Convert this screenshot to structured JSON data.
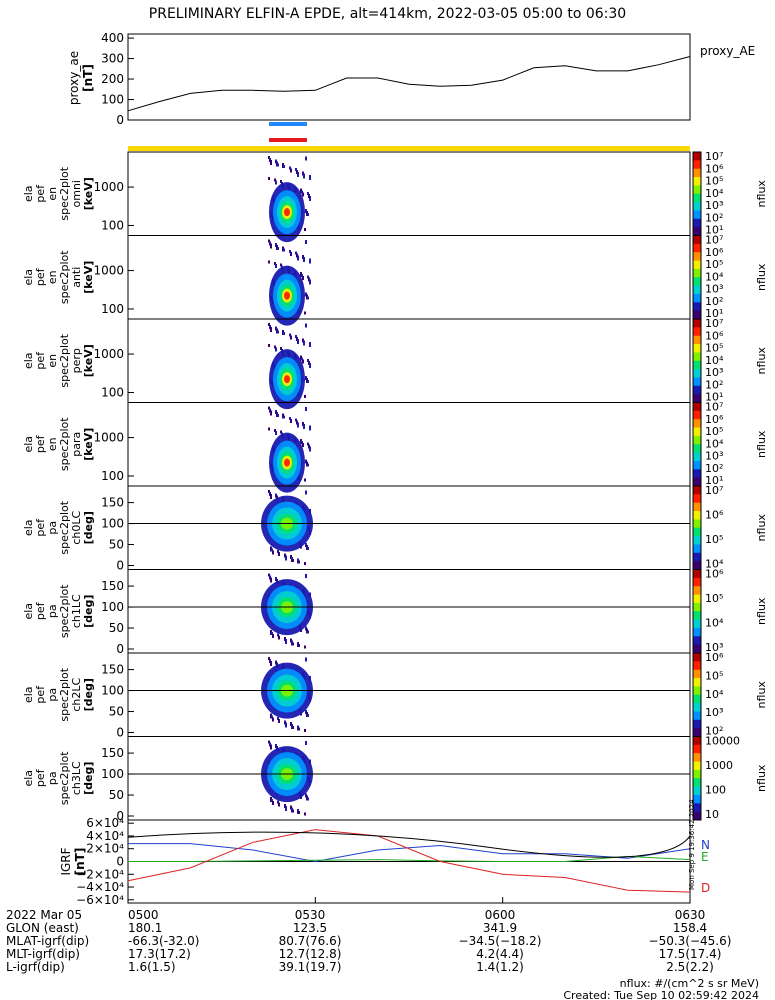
{
  "title": "PRELIMINARY ELFIN-A EPDE, alt=414km, 2022-03-05 05:00 to 06:30",
  "colors": {
    "ae_line": "#000000",
    "bar_blue": "#1e88ff",
    "bar_red": "#e41a1c",
    "bar_yellow": "#ffd700",
    "grf_total": "#000000",
    "grf_n": "#1f3fcc",
    "grf_e": "#22aa22",
    "grf_d": "#dd2222"
  },
  "ae_panel": {
    "ylabel": "proxy_ae",
    "yunit": "[nT]",
    "legend": "proxy_AE",
    "yticks": [
      "400",
      "300",
      "200",
      "100",
      "0"
    ]
  },
  "spec_panels": [
    {
      "label": [
        "ela",
        "pef",
        "en",
        "spec2plot",
        "omni",
        "[keV]"
      ],
      "yticks": [
        "1000",
        "100"
      ],
      "cbar": [
        "10⁷",
        "10⁶",
        "10⁵",
        "10⁴",
        "10³",
        "10²",
        "10¹"
      ],
      "cbar_label": "nflux"
    },
    {
      "label": [
        "ela",
        "pef",
        "en",
        "spec2plot",
        "anti",
        "[keV]"
      ],
      "yticks": [
        "1000",
        "100"
      ],
      "cbar": [
        "10⁷",
        "10⁶",
        "10⁵",
        "10⁴",
        "10³",
        "10²",
        "10¹"
      ],
      "cbar_label": "nflux"
    },
    {
      "label": [
        "ela",
        "pef",
        "en",
        "spec2plot",
        "perp",
        "[keV]"
      ],
      "yticks": [
        "1000",
        "100"
      ],
      "cbar": [
        "10⁷",
        "10⁶",
        "10⁵",
        "10⁴",
        "10³",
        "10²",
        "10¹"
      ],
      "cbar_label": "nflux"
    },
    {
      "label": [
        "ela",
        "pef",
        "en",
        "spec2plot",
        "para",
        "[keV]"
      ],
      "yticks": [
        "1000",
        "100"
      ],
      "cbar": [
        "10⁷",
        "10⁶",
        "10⁵",
        "10⁴",
        "10³",
        "10²",
        "10¹"
      ],
      "cbar_label": "nflux"
    },
    {
      "label": [
        "ela",
        "pef",
        "pa",
        "spec2plot",
        "ch0LC",
        "[deg]"
      ],
      "yticks": [
        "150",
        "100",
        "50",
        "0"
      ],
      "cbar": [
        "10⁷",
        "10⁶",
        "10⁵",
        "10⁴"
      ],
      "cbar_label": "nflux"
    },
    {
      "label": [
        "ela",
        "pef",
        "pa",
        "spec2plot",
        "ch1LC",
        "[deg]"
      ],
      "yticks": [
        "150",
        "100",
        "50",
        "0"
      ],
      "cbar": [
        "10⁶",
        "10⁵",
        "10⁴",
        "10³"
      ],
      "cbar_label": "nflux"
    },
    {
      "label": [
        "ela",
        "pef",
        "pa",
        "spec2plot",
        "ch2LC",
        "[deg]"
      ],
      "yticks": [
        "150",
        "100",
        "50",
        "0"
      ],
      "cbar": [
        "10⁶",
        "10⁵",
        "10⁴",
        "10³",
        "10²"
      ],
      "cbar_label": "nflux"
    },
    {
      "label": [
        "ela",
        "pef",
        "pa",
        "spec2plot",
        "ch3LC",
        "[deg]"
      ],
      "yticks": [
        "150",
        "100",
        "50",
        "0"
      ],
      "cbar": [
        "10000",
        "1000",
        "100",
        "10"
      ],
      "cbar_label": "nflux"
    }
  ],
  "grf_panel": {
    "ylabel": "IGRF",
    "yunit": "[nT]",
    "yticks": [
      "6×10⁴",
      "4×10⁴",
      "2×10⁴",
      "0",
      "−2×10⁴",
      "−4×10⁴",
      "−6×10⁴"
    ],
    "legend": [
      "N",
      "E",
      "D"
    ],
    "side_stamp": "Mon Sep 9 19:36:42 2024"
  },
  "axis": {
    "rows": [
      {
        "label": "2022 Mar 05",
        "values": [
          "0500",
          "0530",
          "0600",
          "0630"
        ]
      },
      {
        "label": "GLON (east)",
        "values": [
          "180.1",
          "123.5",
          "341.9",
          "158.4"
        ]
      },
      {
        "label": "MLAT-igrf(dip)",
        "values": [
          "-66.3(-32.0)",
          "80.7(76.6)",
          "−34.5(−18.2)",
          "−50.3(−45.6)"
        ]
      },
      {
        "label": "MLT-igrf(dip)",
        "values": [
          "17.3(17.2)",
          "12.7(12.8)",
          "4.2(4.4)",
          "17.5(17.4)"
        ]
      },
      {
        "label": "L-igrf(dip)",
        "values": [
          "1.6(1.5)",
          "39.1(19.7)",
          "1.4(1.2)",
          "2.5(2.2)"
        ]
      }
    ]
  },
  "footer": {
    "units": "nflux: #/(cm^2 s sr MeV)",
    "created": "Created: Tue Sep 10 02:59:42 2024"
  },
  "chart_data": {
    "type": "line",
    "title": "PRELIMINARY ELFIN-A EPDE, alt=414km, 2022-03-05 05:00 to 06:30",
    "x_range": [
      "0500",
      "0630"
    ],
    "ae_series": {
      "name": "proxy_AE",
      "x_minutes": [
        0,
        5,
        10,
        15,
        20,
        25,
        30,
        35,
        40,
        45,
        50,
        55,
        60,
        65,
        70,
        75,
        80,
        85,
        90
      ],
      "values": [
        45,
        90,
        130,
        145,
        145,
        140,
        145,
        205,
        205,
        175,
        165,
        170,
        195,
        255,
        265,
        240,
        240,
        270,
        310
      ],
      "ylim": [
        0,
        420
      ]
    },
    "spectrogram_interval": [
      "05:22",
      "05:30"
    ],
    "grf_series": [
      {
        "name": "N",
        "x_minutes": [
          0,
          10,
          20,
          30,
          40,
          50,
          60,
          70,
          80,
          90
        ],
        "values": [
          28000,
          28000,
          18000,
          0,
          18000,
          25000,
          12000,
          12000,
          5000,
          20000
        ]
      },
      {
        "name": "E",
        "x_minutes": [
          0,
          10,
          20,
          30,
          40,
          50,
          60,
          70,
          80,
          90
        ],
        "values": [
          0,
          0,
          1000,
          2000,
          3000,
          1000,
          0,
          0,
          8000,
          3000
        ]
      },
      {
        "name": "D",
        "x_minutes": [
          0,
          10,
          20,
          30,
          40,
          50,
          60,
          70,
          80,
          90
        ],
        "values": [
          -30000,
          -10000,
          30000,
          50000,
          40000,
          0,
          -20000,
          -25000,
          -45000,
          -48000
        ]
      }
    ],
    "grf_ylim": [
      -65000,
      65000
    ]
  }
}
